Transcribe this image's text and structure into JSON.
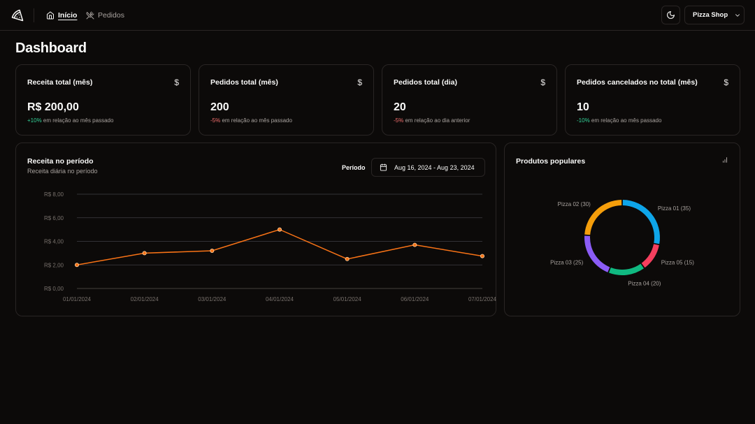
{
  "header": {
    "nav": [
      {
        "label": "Início",
        "icon": "home-icon",
        "active": true
      },
      {
        "label": "Pedidos",
        "icon": "utensils-icon",
        "active": false
      }
    ],
    "store_name": "Pizza Shop"
  },
  "page_title": "Dashboard",
  "stats": [
    {
      "title": "Receita total (mês)",
      "icon": "$",
      "value": "R$ 200,00",
      "delta": "+10%",
      "delta_kind": "positive",
      "desc": " em relação ao mês passado"
    },
    {
      "title": "Pedidos total (mês)",
      "icon": "$",
      "value": "200",
      "delta": "-5%",
      "delta_kind": "negative",
      "desc": " em relação ao mês passado"
    },
    {
      "title": "Pedidos total (dia)",
      "icon": "$",
      "value": "20",
      "delta": "-5%",
      "delta_kind": "negative",
      "desc": " em relação ao dia anterior"
    },
    {
      "title": "Pedidos cancelados no total (mês)",
      "icon": "$",
      "value": "10",
      "delta": "-10%",
      "delta_kind": "positive",
      "desc": " em relação ao mês passado"
    }
  ],
  "revenue": {
    "title": "Receita no período",
    "subtitle": "Receita diária no período",
    "period_label": "Período",
    "period_value": "Aug 16, 2024 - Aug 23, 2024"
  },
  "popular": {
    "title": "Produtos populares"
  },
  "colors": {
    "accent_line": "#f97316",
    "grid": "#3f3f46",
    "delta_positive": "#34d399",
    "delta_negative": "#f87171"
  },
  "chart_data": [
    {
      "type": "line",
      "x": [
        "01/01/2024",
        "02/01/2024",
        "03/01/2024",
        "04/01/2024",
        "05/01/2024",
        "06/01/2024",
        "07/01/2024"
      ],
      "values": [
        2.0,
        3.0,
        3.2,
        5.0,
        2.5,
        3.7,
        2.75
      ],
      "y_ticks": [
        "R$ 0,00",
        "R$ 2,00",
        "R$ 4,00",
        "R$ 6,00",
        "R$ 8,00"
      ],
      "ylim": [
        0,
        8
      ],
      "grid": true,
      "color": "#f97316"
    },
    {
      "type": "pie",
      "labels": [
        "Pizza 01",
        "Pizza 05",
        "Pizza 04",
        "Pizza 03",
        "Pizza 02"
      ],
      "values": [
        35,
        15,
        20,
        25,
        30
      ],
      "display_labels": [
        "Pizza 01 (35)",
        "Pizza 05 (15)",
        "Pizza 04 (20)",
        "Pizza 03 (25)",
        "Pizza 02 (30)"
      ],
      "colors": [
        "#0ea5e9",
        "#f43f5e",
        "#10b981",
        "#8b5cf6",
        "#f59e0b"
      ]
    }
  ]
}
